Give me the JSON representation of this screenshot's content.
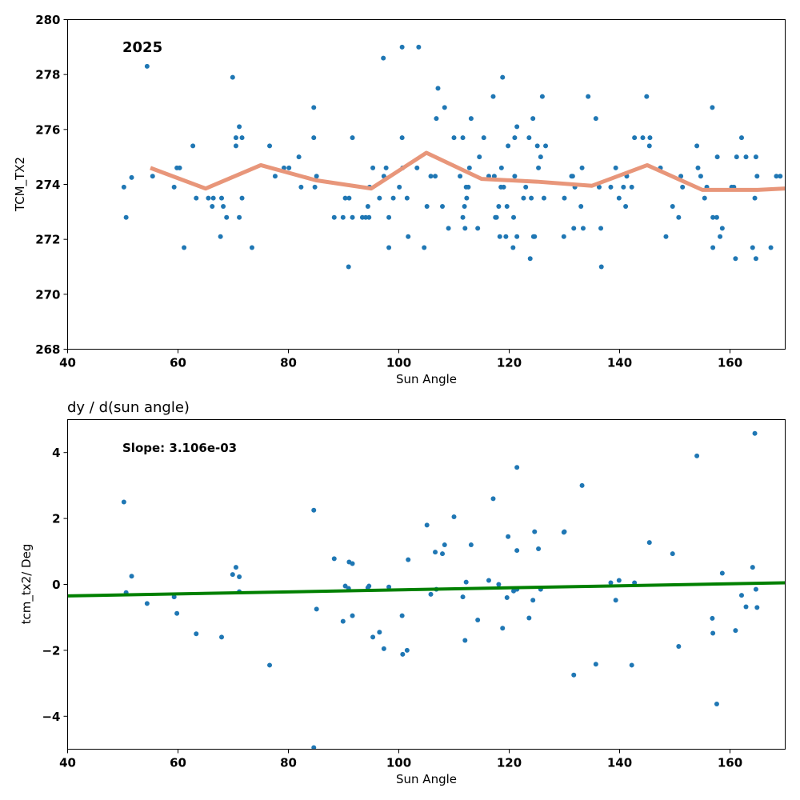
{
  "chart_data": [
    {
      "type": "scatter",
      "title": "",
      "annotation": "2025",
      "xlabel": "Sun Angle",
      "ylabel": "TCM_TX2",
      "xlim": [
        40,
        170
      ],
      "ylim": [
        268,
        280
      ],
      "xticks": [
        "40",
        "60",
        "80",
        "100",
        "120",
        "140",
        "160"
      ],
      "yticks": [
        "268",
        "270",
        "272",
        "274",
        "276",
        "278",
        "280"
      ],
      "grid": false,
      "point_color": "#1f77b4",
      "line_color": "#e8967a",
      "points": [
        [
          50.2,
          273.9
        ],
        [
          50.6,
          272.8
        ],
        [
          51.6,
          274.25
        ],
        [
          54.4,
          278.3
        ],
        [
          55.4,
          274.3
        ],
        [
          59.3,
          273.9
        ],
        [
          59.8,
          274.6
        ],
        [
          60.3,
          274.6
        ],
        [
          61.1,
          271.7
        ],
        [
          62.7,
          275.4
        ],
        [
          63.3,
          273.5
        ],
        [
          65.5,
          273.5
        ],
        [
          66.2,
          273.2
        ],
        [
          66.4,
          273.5
        ],
        [
          67.7,
          272.1
        ],
        [
          67.9,
          273.5
        ],
        [
          68.2,
          273.2
        ],
        [
          68.8,
          272.8
        ],
        [
          69.9,
          277.9
        ],
        [
          70.5,
          275.4
        ],
        [
          70.5,
          275.7
        ],
        [
          71.1,
          276.1
        ],
        [
          71.1,
          272.8
        ],
        [
          71.6,
          275.7
        ],
        [
          71.6,
          273.5
        ],
        [
          73.4,
          271.7
        ],
        [
          76.6,
          275.4
        ],
        [
          77.6,
          274.3
        ],
        [
          79.2,
          274.6
        ],
        [
          80.1,
          274.6
        ],
        [
          81.9,
          275
        ],
        [
          82.3,
          273.9
        ],
        [
          84.6,
          275.7
        ],
        [
          84.6,
          276.8
        ],
        [
          84.8,
          273.9
        ],
        [
          85.1,
          274.3
        ],
        [
          88.3,
          272.8
        ],
        [
          89.9,
          272.8
        ],
        [
          90.3,
          273.5
        ],
        [
          90.9,
          271
        ],
        [
          91,
          273.5
        ],
        [
          91.6,
          275.7
        ],
        [
          91.6,
          272.8
        ],
        [
          93.4,
          272.8
        ],
        [
          94,
          272.8
        ],
        [
          94.4,
          273.2
        ],
        [
          94.7,
          273.9
        ],
        [
          94.6,
          272.8
        ],
        [
          95.3,
          274.6
        ],
        [
          96.5,
          273.5
        ],
        [
          97.3,
          274.3
        ],
        [
          97.2,
          278.6
        ],
        [
          97.7,
          274.6
        ],
        [
          98.2,
          272.8
        ],
        [
          98.2,
          271.7
        ],
        [
          99,
          273.5
        ],
        [
          100.1,
          273.9
        ],
        [
          100.6,
          279
        ],
        [
          100.6,
          275.7
        ],
        [
          100.7,
          274.6
        ],
        [
          101.5,
          273.5
        ],
        [
          101.7,
          272.1
        ],
        [
          103.3,
          274.6
        ],
        [
          103.6,
          279
        ],
        [
          104.6,
          271.7
        ],
        [
          105.1,
          273.2
        ],
        [
          105.8,
          274.3
        ],
        [
          106.6,
          274.3
        ],
        [
          106.8,
          276.4
        ],
        [
          107.1,
          277.5
        ],
        [
          107.9,
          273.2
        ],
        [
          108.3,
          276.8
        ],
        [
          109,
          272.4
        ],
        [
          110,
          275.7
        ],
        [
          111.1,
          274.3
        ],
        [
          111.6,
          272.8
        ],
        [
          111.6,
          275.7
        ],
        [
          111.9,
          273.2
        ],
        [
          112,
          272.4
        ],
        [
          112.2,
          273.9
        ],
        [
          112.3,
          273.5
        ],
        [
          112.6,
          273.9
        ],
        [
          112.8,
          274.6
        ],
        [
          113.1,
          276.4
        ],
        [
          114.3,
          272.4
        ],
        [
          114.6,
          275
        ],
        [
          115.4,
          275.7
        ],
        [
          116.3,
          274.3
        ],
        [
          117.1,
          277.2
        ],
        [
          117.3,
          274.3
        ],
        [
          117.5,
          272.8
        ],
        [
          117.7,
          272.8
        ],
        [
          118.1,
          273.2
        ],
        [
          118.3,
          272.1
        ],
        [
          118.5,
          273.9
        ],
        [
          118.6,
          274.6
        ],
        [
          118.8,
          277.9
        ],
        [
          119,
          273.9
        ],
        [
          119.4,
          272.1
        ],
        [
          119.6,
          273.2
        ],
        [
          119.8,
          275.4
        ],
        [
          120.7,
          271.7
        ],
        [
          120.8,
          272.8
        ],
        [
          121,
          275.7
        ],
        [
          121,
          274.3
        ],
        [
          121.4,
          272.1
        ],
        [
          121.4,
          276.1
        ],
        [
          122.6,
          273.5
        ],
        [
          123,
          273.9
        ],
        [
          123.6,
          275.7
        ],
        [
          123.8,
          271.3
        ],
        [
          124,
          273.5
        ],
        [
          124.3,
          276.4
        ],
        [
          124.4,
          272.1
        ],
        [
          124.6,
          272.1
        ],
        [
          125.1,
          275.4
        ],
        [
          125.3,
          274.6
        ],
        [
          125.7,
          275
        ],
        [
          126,
          277.2
        ],
        [
          126.3,
          273.5
        ],
        [
          126.6,
          275.4
        ],
        [
          129.9,
          272.1
        ],
        [
          130,
          273.5
        ],
        [
          131.3,
          274.3
        ],
        [
          131.5,
          274.3
        ],
        [
          131.7,
          272.4
        ],
        [
          131.9,
          273.9
        ],
        [
          133,
          273.2
        ],
        [
          133.2,
          274.6
        ],
        [
          133.4,
          272.4
        ],
        [
          134.3,
          277.2
        ],
        [
          135.7,
          276.4
        ],
        [
          136.3,
          273.9
        ],
        [
          136.6,
          272.4
        ],
        [
          136.7,
          271
        ],
        [
          138.4,
          273.9
        ],
        [
          139.3,
          274.6
        ],
        [
          139.9,
          273.5
        ],
        [
          140.7,
          273.9
        ],
        [
          141.1,
          273.2
        ],
        [
          141.3,
          274.3
        ],
        [
          142.2,
          273.9
        ],
        [
          142.7,
          275.7
        ],
        [
          144.2,
          275.7
        ],
        [
          144.9,
          277.2
        ],
        [
          145.4,
          275.4
        ],
        [
          145.5,
          275.7
        ],
        [
          147.4,
          274.6
        ],
        [
          148.4,
          272.1
        ],
        [
          149.6,
          273.2
        ],
        [
          150.7,
          272.8
        ],
        [
          151.1,
          274.3
        ],
        [
          151.4,
          273.9
        ],
        [
          154,
          275.4
        ],
        [
          154.2,
          274.6
        ],
        [
          154.7,
          274.3
        ],
        [
          155.4,
          273.5
        ],
        [
          155.8,
          273.9
        ],
        [
          156.8,
          276.8
        ],
        [
          156.9,
          272.8
        ],
        [
          156.9,
          271.7
        ],
        [
          157.6,
          272.8
        ],
        [
          157.7,
          275
        ],
        [
          158.2,
          272.1
        ],
        [
          158.6,
          272.4
        ],
        [
          160.3,
          273.9
        ],
        [
          160.7,
          273.9
        ],
        [
          161,
          271.3
        ],
        [
          161.2,
          275
        ],
        [
          162.1,
          275.7
        ],
        [
          162.9,
          275
        ],
        [
          164.1,
          271.7
        ],
        [
          164.5,
          273.5
        ],
        [
          164.7,
          275
        ],
        [
          164.7,
          271.3
        ],
        [
          164.9,
          274.3
        ],
        [
          167.4,
          271.7
        ],
        [
          168.4,
          274.3
        ],
        [
          169.1,
          274.3
        ]
      ],
      "line": [
        [
          55,
          274.6
        ],
        [
          65,
          273.85
        ],
        [
          75,
          274.7
        ],
        [
          85,
          274.15
        ],
        [
          95,
          273.85
        ],
        [
          105,
          275.15
        ],
        [
          115,
          274.2
        ],
        [
          125,
          274.1
        ],
        [
          135,
          273.95
        ],
        [
          145,
          274.7
        ],
        [
          155,
          273.8
        ],
        [
          165,
          273.8
        ],
        [
          170,
          273.85
        ]
      ]
    },
    {
      "type": "scatter",
      "title": "dy / d(sun angle)",
      "annotation": "Slope: 3.106e-03",
      "xlabel": "Sun Angle",
      "ylabel": "tcm_tx2/ Deg",
      "xlim": [
        40,
        170
      ],
      "ylim": [
        -5,
        5
      ],
      "xticks": [
        "40",
        "60",
        "80",
        "100",
        "120",
        "140",
        "160"
      ],
      "yticks": [
        "−4",
        "−2",
        "0",
        "2",
        "4"
      ],
      "grid": false,
      "point_color": "#1f77b4",
      "line_color": "#008000",
      "points": [
        [
          50.2,
          2.5
        ],
        [
          50.6,
          -0.25
        ],
        [
          51.6,
          0.25
        ],
        [
          54.4,
          -0.58
        ],
        [
          59.3,
          -0.38
        ],
        [
          59.8,
          -0.88
        ],
        [
          63.3,
          -1.5
        ],
        [
          67.9,
          -1.6
        ],
        [
          69.9,
          0.3
        ],
        [
          70.5,
          0.52
        ],
        [
          71.1,
          -0.22
        ],
        [
          71.1,
          0.23
        ],
        [
          76.6,
          -2.45
        ],
        [
          84.6,
          2.25
        ],
        [
          84.6,
          -4.95
        ],
        [
          85.1,
          -0.75
        ],
        [
          88.3,
          0.78
        ],
        [
          89.9,
          -1.12
        ],
        [
          90.3,
          -0.05
        ],
        [
          90.9,
          -0.12
        ],
        [
          91,
          0.68
        ],
        [
          91.6,
          0.63
        ],
        [
          91.6,
          -0.95
        ],
        [
          94.4,
          -0.1
        ],
        [
          94.6,
          -0.05
        ],
        [
          95.3,
          -1.6
        ],
        [
          96.5,
          -1.45
        ],
        [
          97.3,
          -1.95
        ],
        [
          98.2,
          -0.08
        ],
        [
          100.6,
          -0.95
        ],
        [
          100.7,
          -2.12
        ],
        [
          101.5,
          -2.0
        ],
        [
          101.7,
          0.75
        ],
        [
          105.1,
          1.8
        ],
        [
          105.8,
          -0.3
        ],
        [
          106.6,
          0.98
        ],
        [
          106.8,
          -0.15
        ],
        [
          107.9,
          0.93
        ],
        [
          108.3,
          1.2
        ],
        [
          110,
          2.05
        ],
        [
          111.6,
          -0.38
        ],
        [
          112,
          -1.7
        ],
        [
          112.2,
          0.07
        ],
        [
          113.1,
          1.2
        ],
        [
          114.3,
          -1.08
        ],
        [
          116.3,
          0.12
        ],
        [
          117.1,
          2.6
        ],
        [
          118.1,
          0.0
        ],
        [
          118.8,
          -1.33
        ],
        [
          119.6,
          -0.4
        ],
        [
          119.8,
          1.45
        ],
        [
          120.8,
          -0.2
        ],
        [
          121.4,
          1.03
        ],
        [
          121.4,
          3.55
        ],
        [
          121.4,
          -0.15
        ],
        [
          123.6,
          -1.02
        ],
        [
          124.3,
          -0.48
        ],
        [
          124.6,
          1.6
        ],
        [
          125.3,
          1.08
        ],
        [
          125.7,
          -0.15
        ],
        [
          129.9,
          1.58
        ],
        [
          130,
          1.6
        ],
        [
          131.7,
          -2.75
        ],
        [
          133.2,
          3.0
        ],
        [
          135.7,
          -2.42
        ],
        [
          138.4,
          0.05
        ],
        [
          139.3,
          -0.48
        ],
        [
          139.9,
          0.12
        ],
        [
          142.2,
          -2.45
        ],
        [
          142.7,
          0.05
        ],
        [
          145.4,
          1.27
        ],
        [
          149.6,
          0.93
        ],
        [
          150.7,
          -1.88
        ],
        [
          154,
          3.9
        ],
        [
          156.8,
          -1.03
        ],
        [
          156.9,
          -1.48
        ],
        [
          157.6,
          -3.63
        ],
        [
          158.6,
          0.34
        ],
        [
          161,
          -1.4
        ],
        [
          162.1,
          -0.33
        ],
        [
          162.9,
          -0.68
        ],
        [
          164.1,
          0.52
        ],
        [
          164.5,
          4.58
        ],
        [
          164.7,
          -0.15
        ],
        [
          164.9,
          -0.7
        ]
      ],
      "line": [
        [
          40,
          -0.35
        ],
        [
          170,
          0.05
        ]
      ]
    }
  ]
}
